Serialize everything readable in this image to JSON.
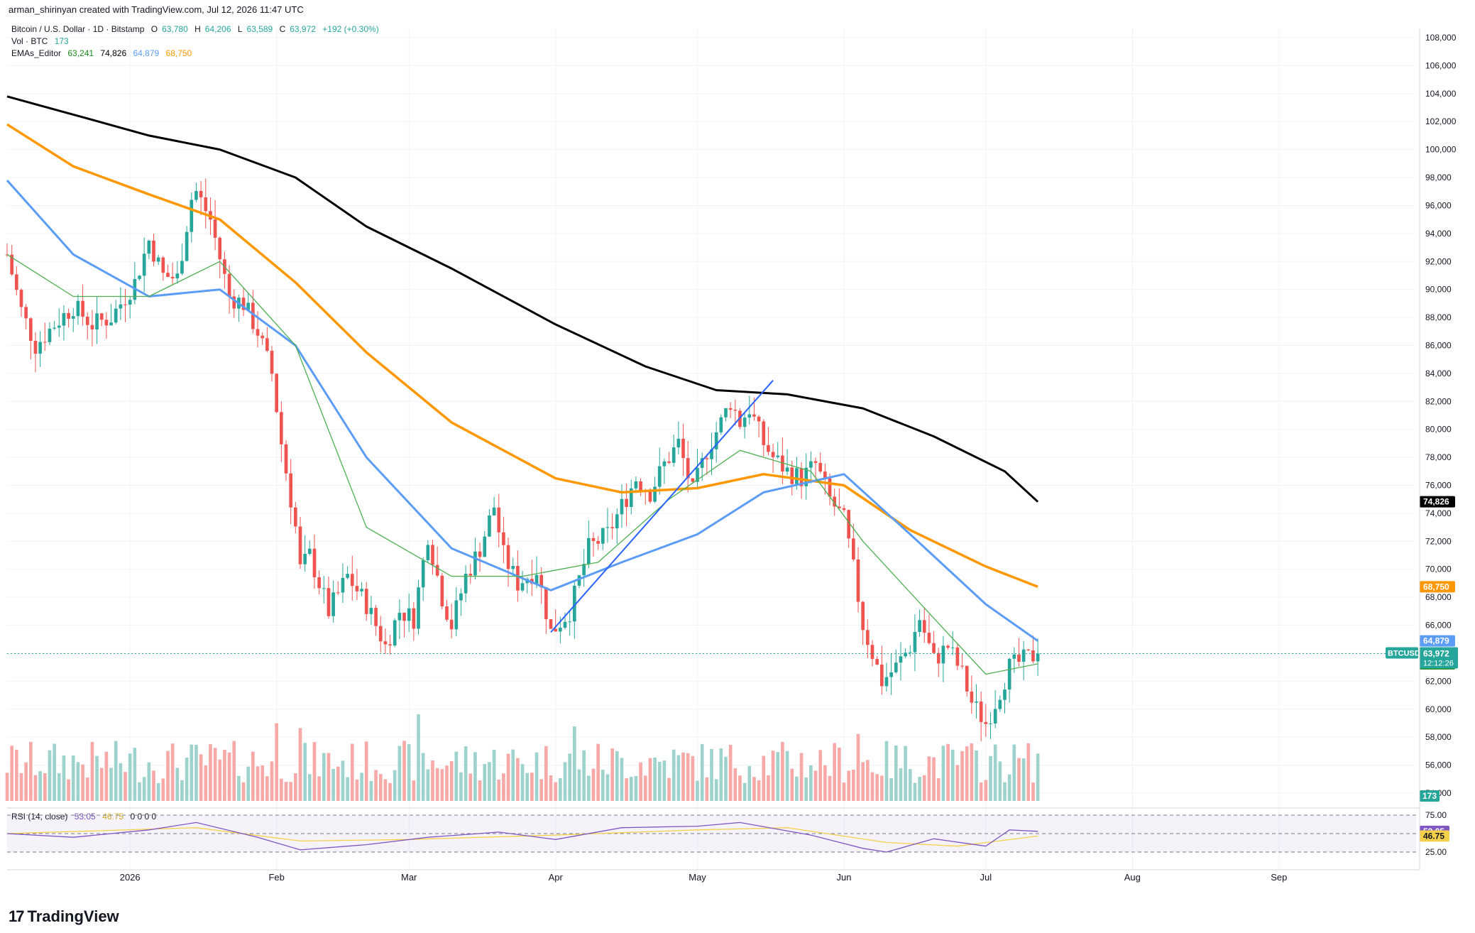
{
  "header": {
    "created": "arman_shirinyan created with TradingView.com, Jul 12, 2026 11:47 UTC"
  },
  "legend": {
    "symbol": "Bitcoin / U.S. Dollar · 1D · Bitstamp",
    "ohlc": {
      "o_label": "O",
      "o": "63,780",
      "h_label": "H",
      "h": "64,206",
      "l_label": "L",
      "l": "63,589",
      "c_label": "C",
      "c": "63,972",
      "chg": "+192 (+0.30%)"
    },
    "vol_label": "Vol · BTC",
    "vol_value": "173",
    "ema_label": "EMAs_Editor",
    "ema_values": [
      "63,241",
      "74,826",
      "64,879",
      "68,750"
    ],
    "rsi_label": "RSI (14, close)",
    "rsi_values": [
      "53.05",
      "46.75"
    ],
    "rsi_zeros": "0 0 0 0"
  },
  "brand": {
    "logo": "17",
    "name": "TradingView"
  },
  "colors": {
    "up": "#26a69a",
    "down": "#ef5350",
    "ema20": "#4caf50",
    "ema50": "#5b9cf6",
    "ema100": "#ff9800",
    "ema200": "#000000",
    "rsi": "#7e57c2",
    "rsi_ma": "#f5d04a",
    "trendline": "#2962ff"
  },
  "chart_data": {
    "type": "candlestick",
    "price_axis": {
      "range": [
        53000,
        109000
      ],
      "ticks": [
        "108,000",
        "106,000",
        "104,000",
        "102,000",
        "100,000",
        "98,000",
        "96,000",
        "94,000",
        "92,000",
        "90,000",
        "88,000",
        "86,000",
        "84,000",
        "82,000",
        "80,000",
        "78,000",
        "76,000",
        "74,000",
        "72,000",
        "70,000",
        "68,000",
        "66,000",
        "64,000",
        "62,000",
        "60,000",
        "58,000",
        "56,000",
        "54,000"
      ]
    },
    "time_axis": {
      "range": [
        "2025-12-06",
        "2026-09-30"
      ],
      "labels": [
        {
          "date": "2026-01-01",
          "text": "2026"
        },
        {
          "date": "2026-02-01",
          "text": "Feb"
        },
        {
          "date": "2026-03-01",
          "text": "Mar"
        },
        {
          "date": "2026-04-01",
          "text": "Apr"
        },
        {
          "date": "2026-05-01",
          "text": "May"
        },
        {
          "date": "2026-06-01",
          "text": "Jun"
        },
        {
          "date": "2026-07-01",
          "text": "Jul"
        },
        {
          "date": "2026-08-01",
          "text": "Aug"
        },
        {
          "date": "2026-09-01",
          "text": "Sep"
        }
      ]
    },
    "close_path": [
      [
        "2025-12-06",
        92500
      ],
      [
        "2025-12-09",
        88500
      ],
      [
        "2025-12-12",
        86000
      ],
      [
        "2025-12-16",
        87500
      ],
      [
        "2025-12-20",
        88800
      ],
      [
        "2025-12-24",
        87500
      ],
      [
        "2025-12-28",
        88000
      ],
      [
        "2026-01-02",
        90500
      ],
      [
        "2026-01-05",
        93500
      ],
      [
        "2026-01-08",
        91000
      ],
      [
        "2026-01-11",
        90800
      ],
      [
        "2026-01-14",
        96500
      ],
      [
        "2026-01-15",
        97000
      ],
      [
        "2026-01-18",
        95000
      ],
      [
        "2026-01-22",
        89500
      ],
      [
        "2026-01-25",
        89000
      ],
      [
        "2026-01-28",
        87000
      ],
      [
        "2026-01-31",
        84000
      ],
      [
        "2026-02-02",
        79000
      ],
      [
        "2026-02-05",
        73000
      ],
      [
        "2026-02-06",
        70000
      ],
      [
        "2026-02-08",
        71000
      ],
      [
        "2026-02-12",
        67000
      ],
      [
        "2026-02-16",
        69500
      ],
      [
        "2026-02-20",
        67500
      ],
      [
        "2026-02-24",
        64500
      ],
      [
        "2026-02-27",
        67000
      ],
      [
        "2026-03-02",
        66500
      ],
      [
        "2026-03-05",
        72500
      ],
      [
        "2026-03-08",
        68000
      ],
      [
        "2026-03-10",
        66000
      ],
      [
        "2026-03-13",
        69500
      ],
      [
        "2026-03-16",
        71500
      ],
      [
        "2026-03-19",
        74500
      ],
      [
        "2026-03-21",
        71000
      ],
      [
        "2026-03-24",
        69000
      ],
      [
        "2026-03-28",
        70000
      ],
      [
        "2026-03-31",
        65500
      ],
      [
        "2026-04-04",
        67000
      ],
      [
        "2026-04-08",
        71500
      ],
      [
        "2026-04-12",
        72500
      ],
      [
        "2026-04-15",
        74500
      ],
      [
        "2026-04-18",
        76500
      ],
      [
        "2026-04-21",
        75500
      ],
      [
        "2026-04-24",
        77500
      ],
      [
        "2026-04-27",
        79000
      ],
      [
        "2026-04-30",
        75500
      ],
      [
        "2026-05-03",
        78500
      ],
      [
        "2026-05-06",
        80500
      ],
      [
        "2026-05-08",
        82000
      ],
      [
        "2026-05-10",
        80500
      ],
      [
        "2026-05-12",
        81500
      ],
      [
        "2026-05-15",
        79000
      ],
      [
        "2026-05-17",
        78000
      ],
      [
        "2026-05-20",
        77000
      ],
      [
        "2026-05-23",
        76500
      ],
      [
        "2026-05-26",
        77500
      ],
      [
        "2026-05-29",
        75000
      ],
      [
        "2026-06-01",
        73500
      ],
      [
        "2026-06-03",
        70000
      ],
      [
        "2026-06-05",
        66000
      ],
      [
        "2026-06-07",
        64000
      ],
      [
        "2026-06-09",
        62000
      ],
      [
        "2026-06-12",
        63000
      ],
      [
        "2026-06-15",
        64500
      ],
      [
        "2026-06-17",
        66500
      ],
      [
        "2026-06-20",
        63500
      ],
      [
        "2026-06-23",
        64500
      ],
      [
        "2026-06-26",
        62500
      ],
      [
        "2026-06-28",
        60500
      ],
      [
        "2026-07-01",
        59000
      ],
      [
        "2026-07-03",
        60500
      ],
      [
        "2026-07-06",
        63000
      ],
      [
        "2026-07-09",
        63500
      ],
      [
        "2026-07-12",
        63972
      ]
    ],
    "ema200": [
      [
        "2025-12-06",
        103800
      ],
      [
        "2025-12-20",
        102500
      ],
      [
        "2026-01-05",
        101000
      ],
      [
        "2026-01-20",
        100000
      ],
      [
        "2026-02-05",
        98000
      ],
      [
        "2026-02-20",
        94500
      ],
      [
        "2026-03-10",
        91500
      ],
      [
        "2026-04-01",
        87500
      ],
      [
        "2026-04-20",
        84500
      ],
      [
        "2026-05-05",
        82800
      ],
      [
        "2026-05-20",
        82500
      ],
      [
        "2026-06-05",
        81500
      ],
      [
        "2026-06-20",
        79500
      ],
      [
        "2026-07-05",
        77000
      ],
      [
        "2026-07-12",
        74826
      ]
    ],
    "ema100": [
      [
        "2025-12-06",
        101800
      ],
      [
        "2025-12-20",
        98800
      ],
      [
        "2026-01-05",
        96800
      ],
      [
        "2026-01-20",
        95000
      ],
      [
        "2026-02-05",
        90500
      ],
      [
        "2026-02-20",
        85500
      ],
      [
        "2026-03-10",
        80500
      ],
      [
        "2026-04-01",
        76500
      ],
      [
        "2026-04-15",
        75500
      ],
      [
        "2026-05-01",
        75800
      ],
      [
        "2026-05-15",
        76800
      ],
      [
        "2026-06-01",
        76000
      ],
      [
        "2026-06-15",
        72800
      ],
      [
        "2026-07-01",
        70200
      ],
      [
        "2026-07-12",
        68750
      ]
    ],
    "ema50": [
      [
        "2025-12-06",
        97800
      ],
      [
        "2025-12-20",
        92500
      ],
      [
        "2026-01-05",
        89500
      ],
      [
        "2026-01-20",
        90000
      ],
      [
        "2026-02-05",
        86000
      ],
      [
        "2026-02-20",
        78000
      ],
      [
        "2026-03-10",
        71500
      ],
      [
        "2026-03-31",
        68500
      ],
      [
        "2026-04-15",
        70500
      ],
      [
        "2026-05-01",
        72500
      ],
      [
        "2026-05-15",
        75500
      ],
      [
        "2026-06-01",
        76800
      ],
      [
        "2026-06-15",
        72500
      ],
      [
        "2026-07-01",
        67500
      ],
      [
        "2026-07-12",
        64879
      ]
    ],
    "ema20": [
      [
        "2025-12-06",
        92500
      ],
      [
        "2025-12-20",
        89500
      ],
      [
        "2026-01-05",
        89500
      ],
      [
        "2026-01-20",
        92000
      ],
      [
        "2026-02-05",
        86000
      ],
      [
        "2026-02-20",
        73000
      ],
      [
        "2026-03-10",
        69500
      ],
      [
        "2026-03-25",
        69500
      ],
      [
        "2026-04-10",
        70500
      ],
      [
        "2026-04-25",
        75000
      ],
      [
        "2026-05-10",
        78500
      ],
      [
        "2026-05-25",
        77000
      ],
      [
        "2026-06-05",
        72000
      ],
      [
        "2026-06-20",
        66500
      ],
      [
        "2026-07-01",
        62500
      ],
      [
        "2026-07-12",
        63241
      ]
    ],
    "trendline": [
      [
        "2026-03-31",
        65500
      ],
      [
        "2026-05-17",
        83500
      ]
    ],
    "last_price": {
      "value": 63972,
      "label": "BTCUSD",
      "text": "63,972",
      "countdown": "12:12:26"
    },
    "price_tags": [
      {
        "value": 74826,
        "text": "74,826",
        "color": "#000000"
      },
      {
        "value": 68750,
        "text": "68,750",
        "color": "#ff9800"
      },
      {
        "value": 64879,
        "text": "64,879",
        "color": "#5b9cf6"
      },
      {
        "value": 63241,
        "text": "63,241",
        "color": "#1b8a1b"
      }
    ],
    "volume_tag": {
      "text": "173"
    },
    "rsi": {
      "levels": [
        75,
        50,
        25
      ],
      "level_labels": [
        "75.00",
        "25.00"
      ],
      "path": [
        [
          "2025-12-06",
          50
        ],
        [
          "2025-12-20",
          45
        ],
        [
          "2026-01-05",
          55
        ],
        [
          "2026-01-15",
          65
        ],
        [
          "2026-01-28",
          45
        ],
        [
          "2026-02-06",
          28
        ],
        [
          "2026-02-20",
          35
        ],
        [
          "2026-03-05",
          45
        ],
        [
          "2026-03-20",
          52
        ],
        [
          "2026-04-01",
          42
        ],
        [
          "2026-04-15",
          58
        ],
        [
          "2026-05-01",
          60
        ],
        [
          "2026-05-10",
          65
        ],
        [
          "2026-05-25",
          48
        ],
        [
          "2026-06-05",
          30
        ],
        [
          "2026-06-10",
          25
        ],
        [
          "2026-06-20",
          43
        ],
        [
          "2026-07-01",
          33
        ],
        [
          "2026-07-06",
          55
        ],
        [
          "2026-07-12",
          53.05
        ]
      ],
      "ma_path": [
        [
          "2025-12-06",
          50
        ],
        [
          "2026-01-15",
          58
        ],
        [
          "2026-02-06",
          40
        ],
        [
          "2026-03-01",
          42
        ],
        [
          "2026-04-01",
          48
        ],
        [
          "2026-05-01",
          55
        ],
        [
          "2026-05-20",
          58
        ],
        [
          "2026-06-10",
          38
        ],
        [
          "2026-06-25",
          33
        ],
        [
          "2026-07-12",
          46.75
        ]
      ]
    }
  }
}
